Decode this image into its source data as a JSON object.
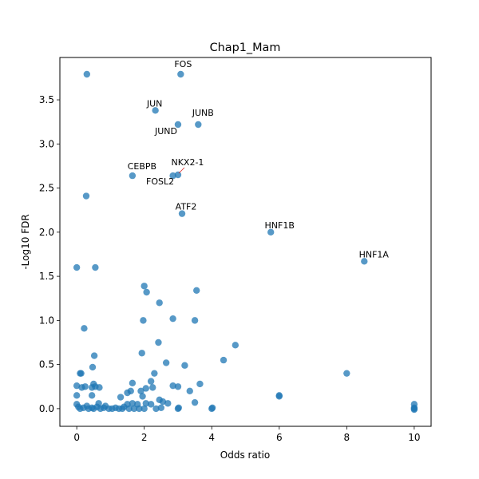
{
  "chart_data": {
    "type": "scatter",
    "title": "Chap1_Mam",
    "xlabel": "Odds ratio",
    "ylabel": "-Log10 FDR",
    "xlim": [
      -0.5,
      10.5
    ],
    "ylim": [
      -0.2,
      3.98
    ],
    "xticks": [
      0,
      2,
      4,
      6,
      8,
      10
    ],
    "xtick_labels": [
      "0",
      "2",
      "4",
      "6",
      "8",
      "10"
    ],
    "yticks": [
      0.0,
      0.5,
      1.0,
      1.5,
      2.0,
      2.5,
      3.0,
      3.5
    ],
    "ytick_labels": [
      "0.0",
      "0.5",
      "1.0",
      "1.5",
      "2.0",
      "2.5",
      "3.0",
      "3.5"
    ],
    "grid": false,
    "point_color": "#1f77b4",
    "labeled_points": [
      {
        "label": "FOS",
        "x": 3.08,
        "y": 3.79
      },
      {
        "label": "JUN",
        "x": 2.33,
        "y": 3.38
      },
      {
        "label": "JUND",
        "x": 3.0,
        "y": 3.22
      },
      {
        "label": "JUNB",
        "x": 3.6,
        "y": 3.22
      },
      {
        "label": "NKX2-1",
        "x": 3.0,
        "y": 2.65
      },
      {
        "label": "FOSL2",
        "x": 2.85,
        "y": 2.64
      },
      {
        "label": "CEBPB",
        "x": 1.65,
        "y": 2.64
      },
      {
        "label": "ATF2",
        "x": 3.12,
        "y": 2.21
      },
      {
        "label": "HNF1B",
        "x": 5.75,
        "y": 2.0
      },
      {
        "label": "HNF1A",
        "x": 8.52,
        "y": 1.67
      }
    ],
    "points": [
      {
        "x": 0.3,
        "y": 3.79
      },
      {
        "x": 0.28,
        "y": 2.41
      },
      {
        "x": 0.0,
        "y": 1.6
      },
      {
        "x": 0.55,
        "y": 1.6
      },
      {
        "x": 2.0,
        "y": 1.39
      },
      {
        "x": 2.07,
        "y": 1.32
      },
      {
        "x": 3.55,
        "y": 1.34
      },
      {
        "x": 2.45,
        "y": 1.2
      },
      {
        "x": 1.97,
        "y": 1.0
      },
      {
        "x": 2.85,
        "y": 1.02
      },
      {
        "x": 3.5,
        "y": 1.0
      },
      {
        "x": 0.22,
        "y": 0.91
      },
      {
        "x": 2.42,
        "y": 0.75
      },
      {
        "x": 4.7,
        "y": 0.72
      },
      {
        "x": 1.93,
        "y": 0.63
      },
      {
        "x": 0.52,
        "y": 0.6
      },
      {
        "x": 4.35,
        "y": 0.55
      },
      {
        "x": 2.65,
        "y": 0.52
      },
      {
        "x": 3.2,
        "y": 0.49
      },
      {
        "x": 0.47,
        "y": 0.47
      },
      {
        "x": 0.1,
        "y": 0.4
      },
      {
        "x": 0.13,
        "y": 0.4
      },
      {
        "x": 2.3,
        "y": 0.4
      },
      {
        "x": 8.0,
        "y": 0.4
      },
      {
        "x": 2.2,
        "y": 0.31
      },
      {
        "x": 1.65,
        "y": 0.29
      },
      {
        "x": 0.5,
        "y": 0.28
      },
      {
        "x": 3.65,
        "y": 0.28
      },
      {
        "x": 0.0,
        "y": 0.26
      },
      {
        "x": 0.15,
        "y": 0.24
      },
      {
        "x": 0.25,
        "y": 0.25
      },
      {
        "x": 0.45,
        "y": 0.24
      },
      {
        "x": 0.55,
        "y": 0.25
      },
      {
        "x": 0.67,
        "y": 0.24
      },
      {
        "x": 2.05,
        "y": 0.23
      },
      {
        "x": 2.25,
        "y": 0.24
      },
      {
        "x": 2.85,
        "y": 0.26
      },
      {
        "x": 3.0,
        "y": 0.25
      },
      {
        "x": 3.35,
        "y": 0.2
      },
      {
        "x": 1.5,
        "y": 0.18
      },
      {
        "x": 1.6,
        "y": 0.2
      },
      {
        "x": 1.9,
        "y": 0.2
      },
      {
        "x": 0.0,
        "y": 0.15
      },
      {
        "x": 0.45,
        "y": 0.15
      },
      {
        "x": 1.3,
        "y": 0.13
      },
      {
        "x": 1.95,
        "y": 0.14
      },
      {
        "x": 6.0,
        "y": 0.15
      },
      {
        "x": 6.0,
        "y": 0.14
      },
      {
        "x": 2.45,
        "y": 0.1
      },
      {
        "x": 2.55,
        "y": 0.08
      },
      {
        "x": 2.7,
        "y": 0.06
      },
      {
        "x": 3.5,
        "y": 0.07
      },
      {
        "x": 10.0,
        "y": 0.05
      },
      {
        "x": 0.0,
        "y": 0.05
      },
      {
        "x": 0.05,
        "y": 0.02
      },
      {
        "x": 0.1,
        "y": 0.0
      },
      {
        "x": 0.2,
        "y": 0.01
      },
      {
        "x": 0.3,
        "y": 0.03
      },
      {
        "x": 0.35,
        "y": 0.0
      },
      {
        "x": 0.45,
        "y": 0.01
      },
      {
        "x": 0.5,
        "y": 0.0
      },
      {
        "x": 0.6,
        "y": 0.02
      },
      {
        "x": 0.65,
        "y": 0.06
      },
      {
        "x": 0.7,
        "y": 0.0
      },
      {
        "x": 0.8,
        "y": 0.01
      },
      {
        "x": 0.85,
        "y": 0.03
      },
      {
        "x": 0.95,
        "y": 0.0
      },
      {
        "x": 1.05,
        "y": 0.0
      },
      {
        "x": 1.15,
        "y": 0.01
      },
      {
        "x": 1.25,
        "y": 0.0
      },
      {
        "x": 1.35,
        "y": 0.0
      },
      {
        "x": 1.4,
        "y": 0.02
      },
      {
        "x": 1.5,
        "y": 0.05
      },
      {
        "x": 1.55,
        "y": 0.0
      },
      {
        "x": 1.65,
        "y": 0.06
      },
      {
        "x": 1.7,
        "y": 0.0
      },
      {
        "x": 1.8,
        "y": 0.05
      },
      {
        "x": 1.85,
        "y": 0.0
      },
      {
        "x": 2.0,
        "y": 0.0
      },
      {
        "x": 2.05,
        "y": 0.06
      },
      {
        "x": 2.2,
        "y": 0.05
      },
      {
        "x": 2.35,
        "y": 0.0
      },
      {
        "x": 2.5,
        "y": 0.01
      },
      {
        "x": 3.0,
        "y": 0.0
      },
      {
        "x": 3.02,
        "y": 0.01
      },
      {
        "x": 4.0,
        "y": 0.0
      },
      {
        "x": 4.02,
        "y": 0.01
      },
      {
        "x": 10.0,
        "y": 0.0
      },
      {
        "x": 10.0,
        "y": 0.01
      },
      {
        "x": 10.0,
        "y": -0.01
      }
    ]
  }
}
